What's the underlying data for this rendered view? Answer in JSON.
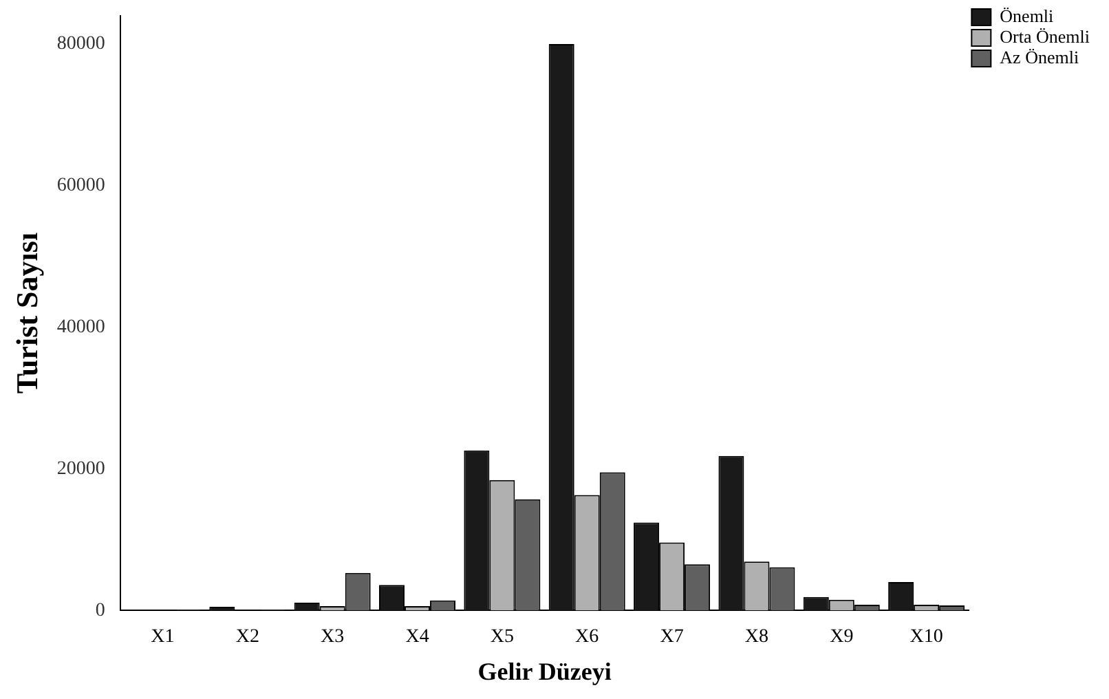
{
  "chart_data": {
    "type": "bar",
    "xlabel": "Gelir Düzeyi",
    "ylabel": "Turist Sayısı",
    "categories": [
      "X1",
      "X2",
      "X3",
      "X4",
      "X5",
      "X6",
      "X7",
      "X8",
      "X9",
      "X10"
    ],
    "series": [
      {
        "name": "Önemli",
        "color": "#1a1a1a",
        "values": [
          null,
          500,
          1100,
          3600,
          22600,
          80000,
          12400,
          21800,
          1900,
          4000
        ]
      },
      {
        "name": "Orta Önemli",
        "color": "#b0b0b0",
        "values": [
          null,
          null,
          600,
          600,
          18400,
          16300,
          9600,
          6900,
          1500,
          800
        ]
      },
      {
        "name": "Az Önemli",
        "color": "#606060",
        "values": [
          100,
          100,
          5300,
          1400,
          15700,
          19500,
          6500,
          6100,
          800,
          700
        ]
      }
    ],
    "ylim": [
      0,
      84000
    ],
    "yticks": [
      0,
      20000,
      40000,
      60000,
      80000
    ],
    "grid": false,
    "legend": "top right"
  }
}
